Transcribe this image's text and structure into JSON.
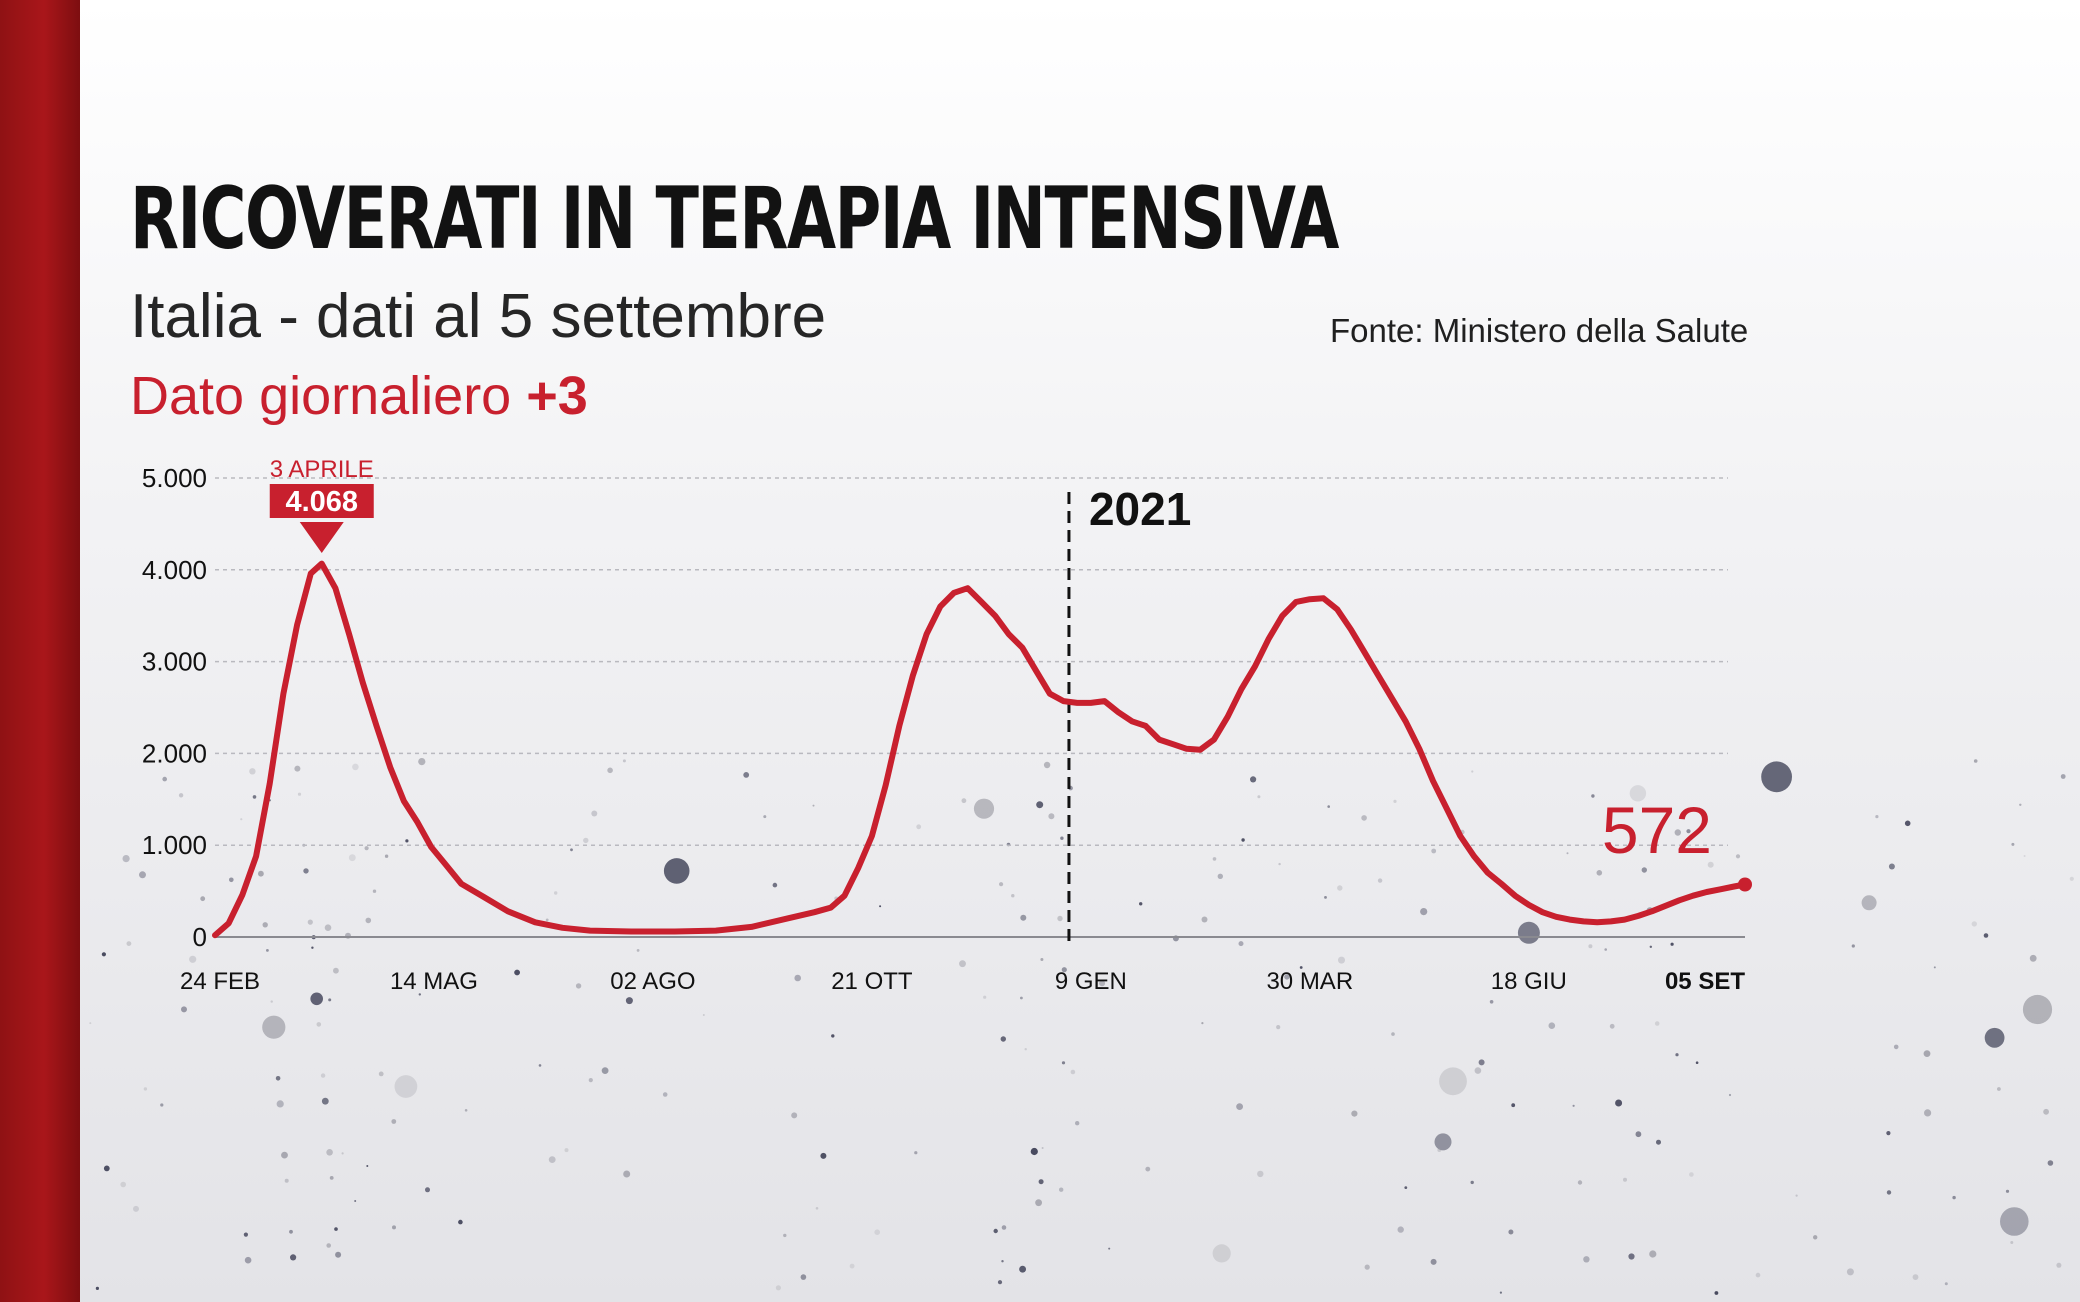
{
  "header": {
    "title": "RICOVERATI IN TERAPIA INTENSIVA",
    "subtitle": "Italia - dati al 5 settembre",
    "source": "Fonte: Ministero della Salute",
    "daily_label": "Dato giornaliero",
    "daily_value": "+3"
  },
  "colors": {
    "brand_red": "#c8202e",
    "sidebar_red": "#a9161a",
    "text_dark": "#121212"
  },
  "chart_data": {
    "type": "line",
    "title": "RICOVERATI IN TERAPIA INTENSIVA",
    "xlabel": "",
    "ylabel": "",
    "ylim": [
      0,
      5000
    ],
    "y_ticks": [
      0,
      1000,
      2000,
      3000,
      4000,
      5000
    ],
    "y_tick_labels": [
      "0",
      "1.000",
      "2.000",
      "3.000",
      "4.000",
      "5.000"
    ],
    "x_tick_labels": [
      "24 FEB",
      "14 MAG",
      "02 AGO",
      "21 OTT",
      "9 GEN",
      "30 MAR",
      "18 GIU",
      "05 SET"
    ],
    "x_tick_dates": [
      "2020-02-24",
      "2020-05-14",
      "2020-08-02",
      "2020-10-21",
      "2021-01-09",
      "2021-03-30",
      "2021-06-18",
      "2021-09-05"
    ],
    "x_range": [
      "2020-02-24",
      "2021-09-05"
    ],
    "grid": true,
    "year_marker": {
      "label": "2021",
      "date": "2021-01-01"
    },
    "peak_annotation": {
      "label": "3 APRILE",
      "value_label": "4.068",
      "date": "2020-04-03",
      "value": 4068
    },
    "last_annotation": {
      "label": "572",
      "date": "2021-09-05",
      "value": 572
    },
    "series": [
      {
        "values": [
          [
            "2020-02-24",
            20
          ],
          [
            "2020-02-29",
            150
          ],
          [
            "2020-03-05",
            460
          ],
          [
            "2020-03-10",
            880
          ],
          [
            "2020-03-15",
            1670
          ],
          [
            "2020-03-20",
            2650
          ],
          [
            "2020-03-25",
            3400
          ],
          [
            "2020-03-30",
            3960
          ],
          [
            "2020-04-03",
            4068
          ],
          [
            "2020-04-08",
            3800
          ],
          [
            "2020-04-13",
            3300
          ],
          [
            "2020-04-18",
            2770
          ],
          [
            "2020-04-23",
            2300
          ],
          [
            "2020-04-28",
            1850
          ],
          [
            "2020-05-03",
            1480
          ],
          [
            "2020-05-08",
            1250
          ],
          [
            "2020-05-13",
            980
          ],
          [
            "2020-05-18",
            800
          ],
          [
            "2020-05-24",
            580
          ],
          [
            "2020-06-01",
            440
          ],
          [
            "2020-06-10",
            280
          ],
          [
            "2020-06-20",
            160
          ],
          [
            "2020-06-30",
            100
          ],
          [
            "2020-07-10",
            70
          ],
          [
            "2020-07-25",
            60
          ],
          [
            "2020-08-10",
            60
          ],
          [
            "2020-08-25",
            70
          ],
          [
            "2020-09-07",
            110
          ],
          [
            "2020-09-20",
            200
          ],
          [
            "2020-09-30",
            270
          ],
          [
            "2020-10-06",
            320
          ],
          [
            "2020-10-11",
            450
          ],
          [
            "2020-10-16",
            750
          ],
          [
            "2020-10-21",
            1100
          ],
          [
            "2020-10-26",
            1650
          ],
          [
            "2020-10-31",
            2300
          ],
          [
            "2020-11-05",
            2850
          ],
          [
            "2020-11-10",
            3300
          ],
          [
            "2020-11-15",
            3600
          ],
          [
            "2020-11-20",
            3750
          ],
          [
            "2020-11-25",
            3800
          ],
          [
            "2020-11-30",
            3650
          ],
          [
            "2020-12-05",
            3500
          ],
          [
            "2020-12-10",
            3300
          ],
          [
            "2020-12-15",
            3150
          ],
          [
            "2020-12-20",
            2900
          ],
          [
            "2020-12-25",
            2650
          ],
          [
            "2020-12-30",
            2570
          ],
          [
            "2021-01-04",
            2550
          ],
          [
            "2021-01-09",
            2550
          ],
          [
            "2021-01-14",
            2570
          ],
          [
            "2021-01-19",
            2450
          ],
          [
            "2021-01-24",
            2350
          ],
          [
            "2021-01-29",
            2300
          ],
          [
            "2021-02-03",
            2150
          ],
          [
            "2021-02-08",
            2100
          ],
          [
            "2021-02-13",
            2050
          ],
          [
            "2021-02-18",
            2040
          ],
          [
            "2021-02-23",
            2150
          ],
          [
            "2021-02-28",
            2400
          ],
          [
            "2021-03-05",
            2700
          ],
          [
            "2021-03-10",
            2950
          ],
          [
            "2021-03-15",
            3250
          ],
          [
            "2021-03-20",
            3500
          ],
          [
            "2021-03-25",
            3650
          ],
          [
            "2021-03-30",
            3680
          ],
          [
            "2021-04-04",
            3690
          ],
          [
            "2021-04-09",
            3570
          ],
          [
            "2021-04-14",
            3350
          ],
          [
            "2021-04-19",
            3100
          ],
          [
            "2021-04-24",
            2850
          ],
          [
            "2021-04-29",
            2600
          ],
          [
            "2021-05-04",
            2350
          ],
          [
            "2021-05-09",
            2050
          ],
          [
            "2021-05-14",
            1700
          ],
          [
            "2021-05-19",
            1400
          ],
          [
            "2021-05-24",
            1100
          ],
          [
            "2021-05-29",
            880
          ],
          [
            "2021-06-03",
            700
          ],
          [
            "2021-06-08",
            580
          ],
          [
            "2021-06-13",
            450
          ],
          [
            "2021-06-18",
            350
          ],
          [
            "2021-06-23",
            270
          ],
          [
            "2021-06-28",
            220
          ],
          [
            "2021-07-03",
            190
          ],
          [
            "2021-07-08",
            170
          ],
          [
            "2021-07-13",
            160
          ],
          [
            "2021-07-18",
            170
          ],
          [
            "2021-07-23",
            190
          ],
          [
            "2021-07-28",
            230
          ],
          [
            "2021-08-02",
            280
          ],
          [
            "2021-08-07",
            340
          ],
          [
            "2021-08-12",
            400
          ],
          [
            "2021-08-17",
            450
          ],
          [
            "2021-08-22",
            490
          ],
          [
            "2021-08-27",
            520
          ],
          [
            "2021-09-01",
            550
          ],
          [
            "2021-09-05",
            572
          ]
        ]
      }
    ]
  }
}
